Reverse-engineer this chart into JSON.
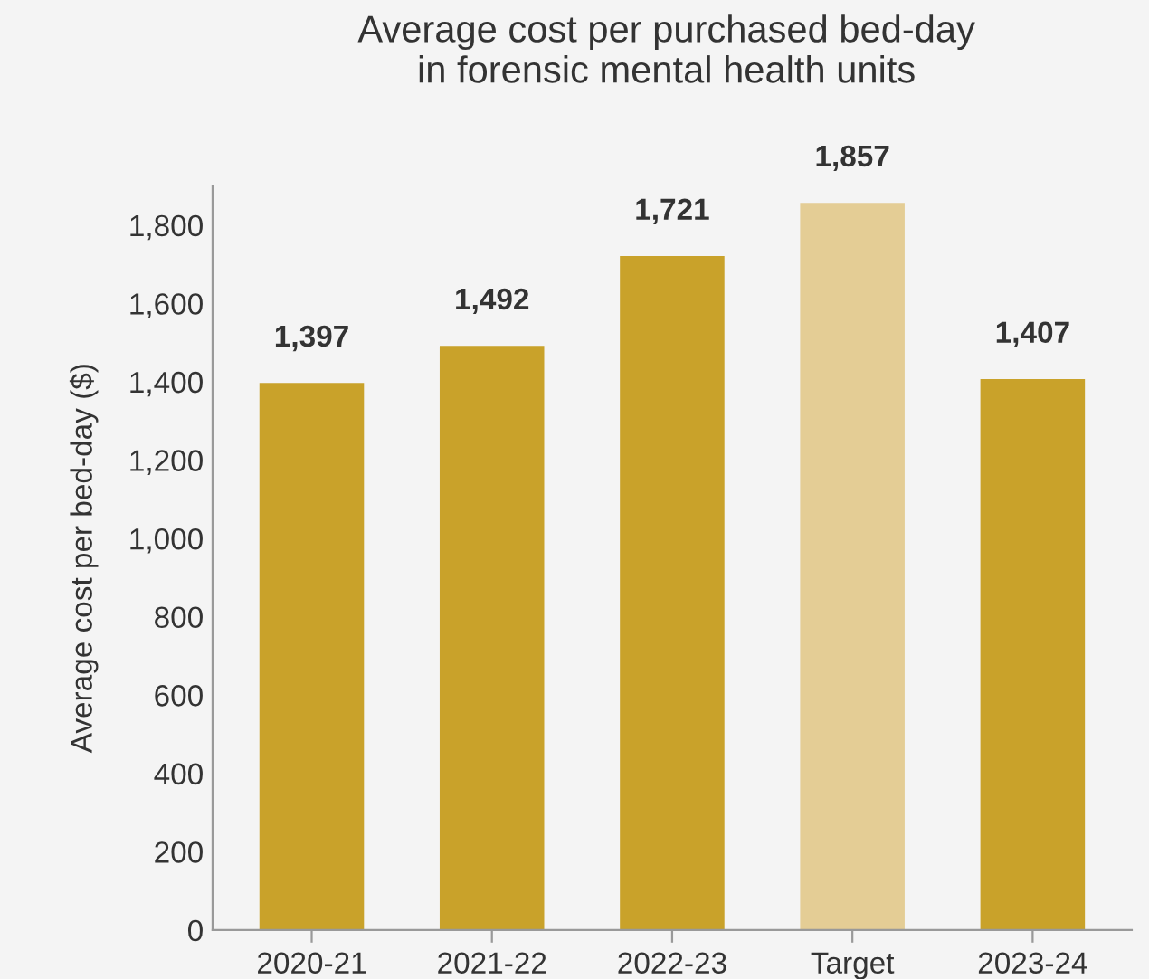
{
  "chart_data": {
    "type": "bar",
    "title": "Average cost per purchased bed-day\nin forensic mental health units",
    "ylabel": "Average cost per bed-day ($)",
    "categories": [
      "2020-21",
      "2021-22",
      "2022-23",
      "Target",
      "2023-24"
    ],
    "values": [
      1397,
      1492,
      1721,
      1857,
      1407
    ],
    "colors": [
      "#c9a22a",
      "#c9a22a",
      "#c9a22a",
      "#e4cd95",
      "#c9a22a"
    ],
    "value_labels": [
      "1,397",
      "1,492",
      "1,721",
      "1,857",
      "1,407"
    ],
    "ylim": [
      0,
      1900
    ],
    "yticks": [
      {
        "value": 0,
        "label": "0"
      },
      {
        "value": 200,
        "label": "200"
      },
      {
        "value": 400,
        "label": "400"
      },
      {
        "value": 600,
        "label": "600"
      },
      {
        "value": 800,
        "label": "800"
      },
      {
        "value": 1000,
        "label": "1,000"
      },
      {
        "value": 1200,
        "label": "1,200"
      },
      {
        "value": 1400,
        "label": "1,400"
      },
      {
        "value": 1600,
        "label": "1,600"
      },
      {
        "value": 1800,
        "label": "1,800"
      }
    ],
    "grid": false,
    "legend": false
  }
}
